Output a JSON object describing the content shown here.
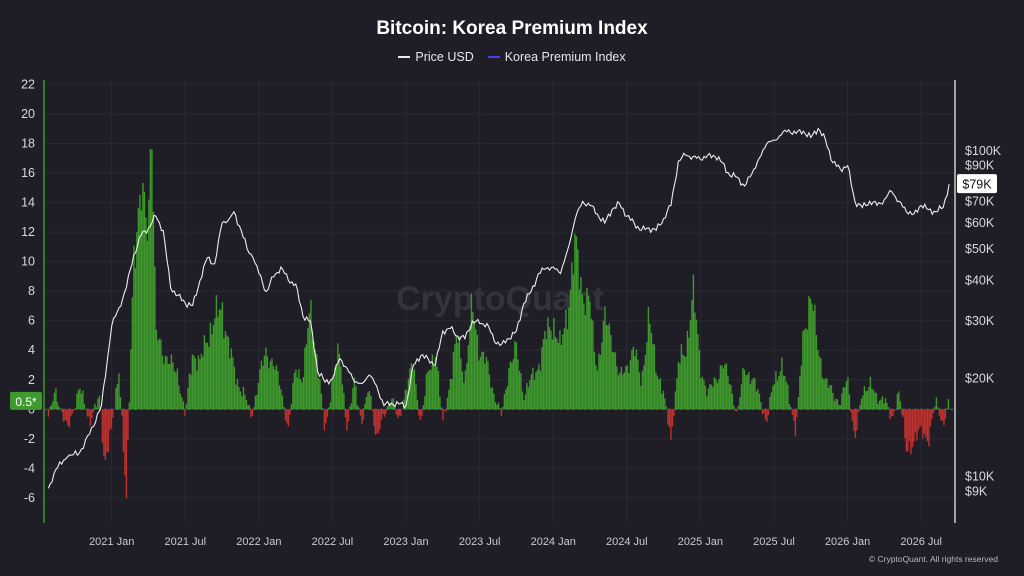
{
  "chart_data": {
    "type": "line",
    "title": "Bitcoin: Korea Premium Index",
    "legend": [
      {
        "name": "Price USD",
        "color": "#e8e8e8"
      },
      {
        "name": "Korea Premium Index",
        "color": "#4b3df0"
      }
    ],
    "left_axis": {
      "ticks": [
        "22",
        "20",
        "18",
        "16",
        "14",
        "12",
        "10",
        "8",
        "6",
        "4",
        "2",
        "0",
        "-2",
        "-4",
        "-6"
      ],
      "tick_values": [
        22,
        20,
        18,
        16,
        14,
        12,
        10,
        8,
        6,
        4,
        2,
        0,
        -2,
        -4,
        -6
      ],
      "ylim": [
        -7.7,
        22.3
      ]
    },
    "right_axis": {
      "scale": "log",
      "ticks": [
        "$100K",
        "$90K",
        "$80K",
        "$70K",
        "$60K",
        "$50K",
        "$40K",
        "$30K",
        "$20K",
        "$10K",
        "$9K"
      ],
      "tick_values": [
        100000,
        90000,
        80000,
        70000,
        60000,
        50000,
        40000,
        30000,
        20000,
        10000,
        9000
      ]
    },
    "x_axis": {
      "ticks": [
        "2021 Jan",
        "2021 Jul",
        "2022 Jan",
        "2022 Jul",
        "2023 Jan",
        "2023 Jul",
        "2024 Jan",
        "2024 Jul",
        "2025 Jan",
        "2025 Jul",
        "2026 Jan",
        "2026 Jul"
      ],
      "tick_values": [
        2021.0,
        2021.5,
        2022.0,
        2022.5,
        2023.0,
        2023.5,
        2024.0,
        2024.5,
        2025.0,
        2025.5,
        2026.0,
        2026.5
      ],
      "xlim": [
        2020.54,
        2026.73
      ]
    },
    "zero_line": 0,
    "current_premium_label": "0.5*",
    "current_price_label": "$79K",
    "current_price": 79000,
    "price_series": {
      "name": "Price USD",
      "x": [
        2020.57,
        2020.62,
        2020.7,
        2020.78,
        2020.85,
        2020.93,
        2021.0,
        2021.05,
        2021.1,
        2021.15,
        2021.2,
        2021.25,
        2021.3,
        2021.35,
        2021.4,
        2021.45,
        2021.5,
        2021.55,
        2021.6,
        2021.65,
        2021.7,
        2021.75,
        2021.8,
        2021.83,
        2021.88,
        2021.92,
        2021.96,
        2022.0,
        2022.05,
        2022.1,
        2022.15,
        2022.2,
        2022.25,
        2022.3,
        2022.35,
        2022.4,
        2022.45,
        2022.5,
        2022.55,
        2022.6,
        2022.65,
        2022.7,
        2022.75,
        2022.8,
        2022.85,
        2022.9,
        2022.95,
        2023.0,
        2023.05,
        2023.1,
        2023.15,
        2023.2,
        2023.25,
        2023.3,
        2023.35,
        2023.4,
        2023.45,
        2023.5,
        2023.55,
        2023.6,
        2023.65,
        2023.7,
        2023.75,
        2023.8,
        2023.85,
        2023.9,
        2023.95,
        2024.0,
        2024.05,
        2024.1,
        2024.15,
        2024.2,
        2024.25,
        2024.3,
        2024.35,
        2024.4,
        2024.45,
        2024.5,
        2024.55,
        2024.6,
        2024.65,
        2024.7,
        2024.75,
        2024.8,
        2024.85,
        2024.9,
        2024.95,
        2025.0,
        2025.05,
        2025.1,
        2025.15,
        2025.2,
        2025.25,
        2025.3,
        2025.35,
        2025.4,
        2025.45,
        2025.5,
        2025.55,
        2025.6,
        2025.65,
        2025.7,
        2025.75,
        2025.8,
        2025.85,
        2025.9,
        2025.95,
        2026.0,
        2026.05,
        2026.1,
        2026.15,
        2026.2,
        2026.25,
        2026.3,
        2026.35,
        2026.4,
        2026.45,
        2026.5,
        2026.55,
        2026.6,
        2026.65,
        2026.69
      ],
      "values": [
        9200,
        10500,
        11500,
        11800,
        13500,
        16500,
        29000,
        33000,
        38000,
        48000,
        55000,
        58000,
        63000,
        57000,
        38000,
        36000,
        34000,
        33500,
        40000,
        47000,
        45000,
        60000,
        62000,
        65000,
        57000,
        50000,
        47000,
        42000,
        37000,
        41000,
        44000,
        40000,
        39000,
        31000,
        30000,
        21000,
        19500,
        20000,
        23000,
        21500,
        19500,
        19300,
        20500,
        19000,
        16500,
        16800,
        16700,
        16500,
        22000,
        23500,
        23000,
        22000,
        28000,
        28500,
        27000,
        26500,
        30000,
        29500,
        29500,
        26000,
        25500,
        26500,
        28000,
        34000,
        37000,
        42000,
        43500,
        44000,
        42000,
        50000,
        62000,
        70000,
        68000,
        64000,
        60000,
        66000,
        69000,
        63000,
        60000,
        57000,
        58000,
        57000,
        62000,
        68000,
        93000,
        97000,
        96000,
        94000,
        97000,
        96000,
        92000,
        84000,
        83000,
        78000,
        85000,
        95000,
        105000,
        108000,
        112000,
        116000,
        113000,
        115000,
        110000,
        117000,
        108000,
        92000,
        88000,
        90000,
        70000,
        67000,
        70000,
        68000,
        71000,
        75000,
        70000,
        65000,
        64000,
        68000,
        66000,
        65000,
        67000,
        79000
      ]
    },
    "premium_series": {
      "name": "Korea Premium Index",
      "x": [
        2020.57,
        2020.62,
        2020.7,
        2020.78,
        2020.85,
        2020.92,
        2020.95,
        2021.0,
        2021.05,
        2021.1,
        2021.15,
        2021.2,
        2021.25,
        2021.27,
        2021.3,
        2021.35,
        2021.4,
        2021.45,
        2021.5,
        2021.55,
        2021.6,
        2021.65,
        2021.7,
        2021.75,
        2021.8,
        2021.85,
        2021.9,
        2021.95,
        2022.0,
        2022.05,
        2022.1,
        2022.15,
        2022.2,
        2022.25,
        2022.3,
        2022.35,
        2022.4,
        2022.45,
        2022.5,
        2022.55,
        2022.6,
        2022.65,
        2022.7,
        2022.75,
        2022.8,
        2022.85,
        2022.9,
        2022.95,
        2023.0,
        2023.05,
        2023.1,
        2023.15,
        2023.2,
        2023.25,
        2023.3,
        2023.35,
        2023.4,
        2023.45,
        2023.5,
        2023.55,
        2023.6,
        2023.65,
        2023.7,
        2023.75,
        2023.8,
        2023.85,
        2023.9,
        2023.95,
        2024.0,
        2024.05,
        2024.1,
        2024.15,
        2024.2,
        2024.25,
        2024.28,
        2024.3,
        2024.35,
        2024.4,
        2024.45,
        2024.5,
        2024.55,
        2024.6,
        2024.65,
        2024.7,
        2024.75,
        2024.8,
        2024.85,
        2024.9,
        2024.95,
        2025.0,
        2025.05,
        2025.1,
        2025.15,
        2025.2,
        2025.25,
        2025.3,
        2025.35,
        2025.4,
        2025.45,
        2025.5,
        2025.55,
        2025.6,
        2025.65,
        2025.7,
        2025.75,
        2025.8,
        2025.85,
        2025.9,
        2025.95,
        2026.0,
        2026.05,
        2026.1,
        2026.15,
        2026.2,
        2026.25,
        2026.3,
        2026.35,
        2026.4,
        2026.45,
        2026.5,
        2026.55,
        2026.6,
        2026.65,
        2026.69
      ],
      "values": [
        -0.5,
        1.2,
        -1.5,
        1.5,
        -0.8,
        0.8,
        -3.5,
        -1.5,
        3,
        -6.5,
        11,
        14,
        13,
        21,
        5,
        4,
        3,
        2.5,
        -0.5,
        4,
        3,
        5,
        6,
        7,
        4,
        2,
        1,
        -0.5,
        2,
        4,
        3,
        1.5,
        -1.5,
        3,
        2,
        7,
        3,
        -1.5,
        2,
        4,
        -1.5,
        2,
        -1,
        1.5,
        -2,
        -0.5,
        1,
        -1,
        1.5,
        3,
        -1,
        2.5,
        4,
        -1,
        2,
        5,
        2,
        7,
        4,
        3,
        1,
        -0.5,
        3,
        4,
        1,
        2,
        3,
        5,
        6,
        4,
        7,
        11,
        8,
        7,
        4,
        3,
        6,
        5,
        2,
        3,
        4,
        2,
        6,
        3,
        1,
        -2,
        3,
        4,
        8,
        3,
        1,
        2,
        3,
        2,
        -0.5,
        3,
        2,
        1,
        -1,
        2,
        3,
        1,
        -1.5,
        5,
        8,
        4,
        2,
        1,
        0.5,
        2,
        -2,
        1,
        2,
        0.5,
        1,
        -1,
        1.5,
        -3,
        -2,
        -1.5,
        -2,
        0.5,
        -1,
        0.5
      ]
    }
  },
  "footer": "© CryptoQuant. All rights reserved",
  "watermark": "CryptoQuant"
}
